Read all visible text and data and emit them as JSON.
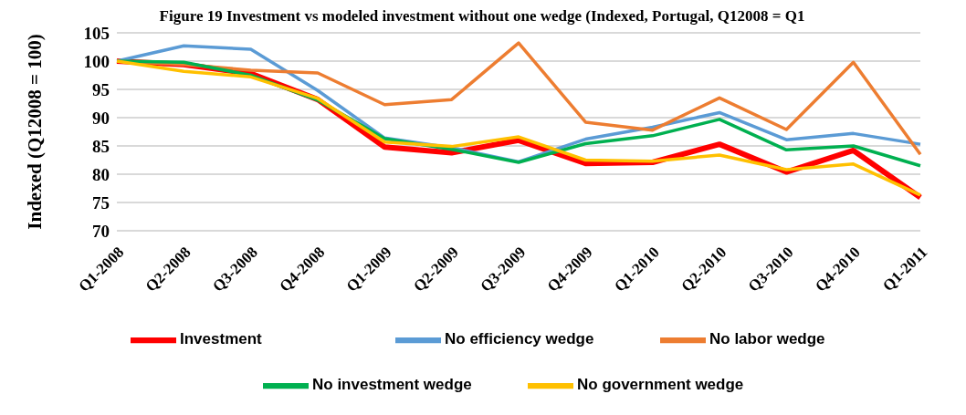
{
  "chart_data": {
    "type": "line",
    "title": "Figure 19    Investment vs modeled investment without one wedge (Indexed, Portugal, Q12008 = Q1",
    "ylabel": "Indexed (Q12008 = 100)",
    "categories": [
      "Q1-2008",
      "Q2-2008",
      "Q3-2008",
      "Q4-2008",
      "Q1-2009",
      "Q2-2009",
      "Q3-2009",
      "Q4-2009",
      "Q1-2010",
      "Q2-2010",
      "Q3-2010",
      "Q4-2010",
      "Q1-2011"
    ],
    "series": [
      {
        "name": "Investment",
        "color": "#ff0000",
        "values": [
          100,
          99.4,
          97.8,
          93.2,
          84.8,
          83.8,
          86.0,
          81.9,
          82.1,
          85.3,
          80.4,
          84.2,
          75.9
        ]
      },
      {
        "name": "No efficiency wedge",
        "color": "#5b9bd5",
        "values": [
          100,
          102.7,
          102.1,
          94.8,
          86.4,
          84.7,
          82.2,
          86.2,
          88.3,
          90.9,
          86.1,
          87.2,
          85.3
        ]
      },
      {
        "name": "No labor wedge",
        "color": "#ed7d31",
        "values": [
          100,
          99.4,
          98.4,
          97.9,
          92.3,
          93.2,
          103.2,
          89.2,
          87.8,
          93.5,
          87.9,
          99.8,
          83.5
        ]
      },
      {
        "name": "No investment wedge",
        "color": "#00b050",
        "values": [
          100,
          99.8,
          97.5,
          93.1,
          86.3,
          84.4,
          82.1,
          85.4,
          86.8,
          89.7,
          84.3,
          85.0,
          81.5
        ]
      },
      {
        "name": "No government wedge",
        "color": "#ffc000",
        "values": [
          100,
          98.2,
          97.2,
          93.4,
          85.7,
          84.9,
          86.6,
          82.5,
          82.3,
          83.4,
          80.8,
          81.8,
          76.3
        ]
      }
    ],
    "ylim": [
      70,
      105
    ],
    "yticks": [
      70,
      75,
      80,
      85,
      90,
      95,
      100,
      105
    ],
    "grid": "y",
    "legend": "bottom",
    "marker": "none",
    "line_style": "solid"
  }
}
